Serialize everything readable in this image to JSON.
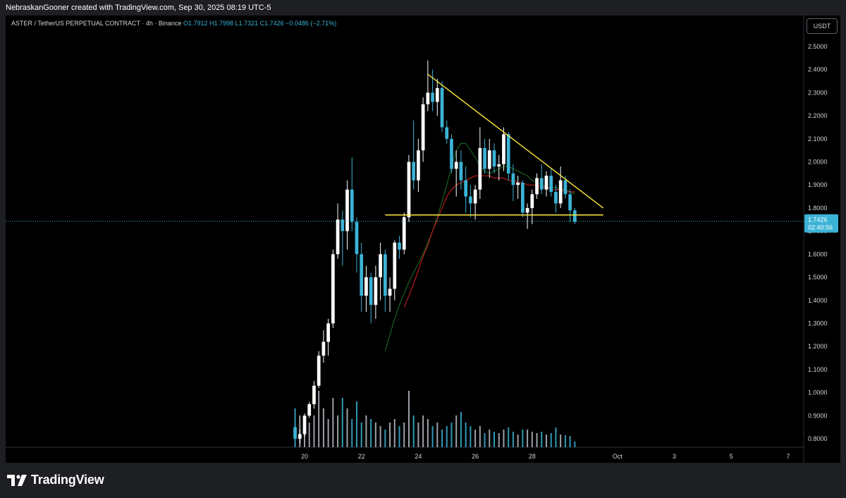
{
  "header": {
    "attribution": "NebraskanGooner created with TradingView.com, Sep 30, 2025 08:19 UTC-5"
  },
  "legend": {
    "symbol": "ASTER / TetherUS PERPETUAL CONTRACT · 4h · Binance",
    "open": "O1.7912",
    "high": "H1.7998",
    "low": "L1.7321",
    "close": "C1.7426",
    "change": "−0.0486 (−2.71%)"
  },
  "currency_button": "USDT",
  "price_label": {
    "price": "1.7426",
    "countdown": "02:40:56"
  },
  "brand": "TradingView",
  "colors": {
    "up": "#ffffff",
    "down": "#3bb3d6",
    "trendline": "#ffeb3b",
    "ma_green": "#1b5e20",
    "ma_red": "#b71c1c",
    "axis_text": "#d1d4dc",
    "current_price": "#3bb3d6"
  },
  "chart_data": {
    "type": "candlestick",
    "timeframe": "4h",
    "y_ticks": [
      "2.5000",
      "2.4000",
      "2.3000",
      "2.2000",
      "2.1000",
      "2.0000",
      "1.9000",
      "1.8000",
      "1.7000",
      "1.6000",
      "1.5000",
      "1.4000",
      "1.3000",
      "1.2000",
      "1.1000",
      "1.0000",
      "0.9000",
      "0.8000"
    ],
    "ylim": [
      0.78,
      2.56
    ],
    "x_ticks": [
      "20",
      "22",
      "24",
      "26",
      "28",
      "Oct",
      "3",
      "5",
      "7"
    ],
    "current_price": 1.7426,
    "candles": [
      [
        "Sep 19 16:00",
        0.85,
        0.86,
        0.8,
        0.8
      ],
      [
        "Sep 19 20:00",
        0.8,
        0.84,
        0.78,
        0.82
      ],
      [
        "Sep 20 00:00",
        0.82,
        0.91,
        0.81,
        0.9
      ],
      [
        "Sep 20 04:00",
        0.9,
        0.96,
        0.89,
        0.95
      ],
      [
        "Sep 20 08:00",
        0.95,
        1.05,
        0.93,
        1.03
      ],
      [
        "Sep 20 12:00",
        1.03,
        1.18,
        1.02,
        1.16
      ],
      [
        "Sep 20 16:00",
        1.16,
        1.27,
        1.13,
        1.22
      ],
      [
        "Sep 20 20:00",
        1.22,
        1.32,
        1.16,
        1.3
      ],
      [
        "Sep 21 00:00",
        1.3,
        1.62,
        1.28,
        1.6
      ],
      [
        "Sep 21 04:00",
        1.6,
        1.82,
        1.58,
        1.75
      ],
      [
        "Sep 21 08:00",
        1.75,
        1.79,
        1.55,
        1.7
      ],
      [
        "Sep 21 12:00",
        1.7,
        1.92,
        1.62,
        1.88
      ],
      [
        "Sep 21 16:00",
        1.88,
        2.02,
        1.7,
        1.74
      ],
      [
        "Sep 21 20:00",
        1.74,
        1.76,
        1.52,
        1.6
      ],
      [
        "Sep 22 00:00",
        1.6,
        1.65,
        1.35,
        1.42
      ],
      [
        "Sep 22 04:00",
        1.42,
        1.55,
        1.35,
        1.5
      ],
      [
        "Sep 22 08:00",
        1.5,
        1.52,
        1.3,
        1.38
      ],
      [
        "Sep 22 12:00",
        1.38,
        1.55,
        1.32,
        1.5
      ],
      [
        "Sep 22 16:00",
        1.5,
        1.65,
        1.4,
        1.6
      ],
      [
        "Sep 22 20:00",
        1.6,
        1.62,
        1.35,
        1.42
      ],
      [
        "Sep 23 00:00",
        1.42,
        1.5,
        1.35,
        1.45
      ],
      [
        "Sep 23 04:00",
        1.45,
        1.66,
        1.4,
        1.65
      ],
      [
        "Sep 23 08:00",
        1.65,
        1.68,
        1.58,
        1.62
      ],
      [
        "Sep 23 12:00",
        1.62,
        1.78,
        1.6,
        1.76
      ],
      [
        "Sep 23 16:00",
        1.76,
        2.03,
        1.74,
        2.0
      ],
      [
        "Sep 23 20:00",
        2.0,
        2.18,
        1.88,
        1.92
      ],
      [
        "Sep 24 00:00",
        1.92,
        2.1,
        1.87,
        2.05
      ],
      [
        "Sep 24 04:00",
        2.05,
        2.28,
        2.0,
        2.25
      ],
      [
        "Sep 24 08:00",
        2.25,
        2.44,
        2.22,
        2.3
      ],
      [
        "Sep 24 12:00",
        2.3,
        2.4,
        2.22,
        2.26
      ],
      [
        "Sep 24 16:00",
        2.26,
        2.36,
        2.2,
        2.32
      ],
      [
        "Sep 24 20:00",
        2.32,
        2.35,
        2.13,
        2.15
      ],
      [
        "Sep 25 00:00",
        2.15,
        2.18,
        2.08,
        2.1
      ],
      [
        "Sep 25 04:00",
        2.1,
        2.12,
        1.95,
        1.97
      ],
      [
        "Sep 25 08:00",
        1.97,
        2.05,
        1.85,
        2.0
      ],
      [
        "Sep 25 12:00",
        2.0,
        2.05,
        1.88,
        1.92
      ],
      [
        "Sep 25 16:00",
        1.92,
        1.98,
        1.78,
        1.85
      ],
      [
        "Sep 25 20:00",
        1.85,
        1.9,
        1.76,
        1.82
      ],
      [
        "Sep 26 00:00",
        1.82,
        1.9,
        1.75,
        1.88
      ],
      [
        "Sep 26 04:00",
        1.88,
        2.15,
        1.84,
        2.06
      ],
      [
        "Sep 26 08:00",
        2.06,
        2.1,
        1.95,
        1.97
      ],
      [
        "Sep 26 12:00",
        1.97,
        2.1,
        1.93,
        2.05
      ],
      [
        "Sep 26 16:00",
        2.05,
        2.08,
        1.95,
        1.98
      ],
      [
        "Sep 26 20:00",
        1.98,
        2.03,
        1.92,
        1.99
      ],
      [
        "Sep 27 00:00",
        1.99,
        2.15,
        1.96,
        2.12
      ],
      [
        "Sep 27 04:00",
        2.12,
        2.13,
        1.92,
        1.95
      ],
      [
        "Sep 27 08:00",
        1.95,
        1.99,
        1.83,
        1.9
      ],
      [
        "Sep 27 12:00",
        1.9,
        1.94,
        1.84,
        1.91
      ],
      [
        "Sep 27 16:00",
        1.91,
        1.92,
        1.76,
        1.78
      ],
      [
        "Sep 27 20:00",
        1.78,
        1.82,
        1.71,
        1.8
      ],
      [
        "Sep 28 00:00",
        1.8,
        1.88,
        1.73,
        1.86
      ],
      [
        "Sep 28 04:00",
        1.86,
        1.95,
        1.84,
        1.93
      ],
      [
        "Sep 28 08:00",
        1.93,
        1.99,
        1.86,
        1.88
      ],
      [
        "Sep 28 12:00",
        1.88,
        1.96,
        1.85,
        1.94
      ],
      [
        "Sep 28 16:00",
        1.94,
        1.97,
        1.85,
        1.87
      ],
      [
        "Sep 28 20:00",
        1.87,
        1.9,
        1.78,
        1.82
      ],
      [
        "Sep 29 00:00",
        1.82,
        1.98,
        1.8,
        1.92
      ],
      [
        "Sep 29 04:00",
        1.92,
        1.94,
        1.84,
        1.86
      ],
      [
        "Sep 29 08:00",
        1.86,
        1.88,
        1.74,
        1.79
      ],
      [
        "Sep 29 12:00",
        1.79,
        1.8,
        1.73,
        1.74
      ]
    ],
    "volume_relative": [
      0.55,
      0.45,
      0.3,
      0.35,
      0.45,
      0.8,
      0.55,
      0.4,
      0.7,
      0.45,
      0.7,
      0.55,
      0.4,
      0.65,
      0.35,
      0.45,
      0.4,
      0.35,
      0.3,
      0.25,
      0.35,
      0.4,
      0.3,
      0.35,
      0.8,
      0.45,
      0.35,
      0.45,
      0.4,
      0.3,
      0.35,
      0.25,
      0.3,
      0.35,
      0.45,
      0.5,
      0.35,
      0.3,
      0.25,
      0.3,
      0.2,
      0.25,
      0.22,
      0.2,
      0.25,
      0.28,
      0.22,
      0.18,
      0.25,
      0.25,
      0.22,
      0.2,
      0.22,
      0.18,
      0.2,
      0.28,
      0.18,
      0.17,
      0.16,
      0.08
    ],
    "moving_averages": [
      {
        "color": "#1b5e20",
        "values": [
          1.18,
          1.25,
          1.32,
          1.38,
          1.43,
          1.48,
          1.52,
          1.56,
          1.6,
          1.65,
          1.7,
          1.76,
          1.83,
          1.9,
          1.98,
          2.05,
          2.08,
          2.08,
          2.05,
          2.02,
          1.98,
          1.96,
          1.95,
          1.96,
          1.97,
          1.98,
          1.98,
          1.97,
          1.96,
          1.95,
          1.94,
          1.92,
          1.91,
          1.9,
          1.89,
          1.89,
          1.89,
          1.88,
          1.88,
          1.87,
          1.86
        ]
      },
      {
        "color": "#b71c1c",
        "values": [
          1.37,
          1.42,
          1.47,
          1.53,
          1.59,
          1.64,
          1.7,
          1.75,
          1.8,
          1.85,
          1.88,
          1.9,
          1.91,
          1.92,
          1.93,
          1.94,
          1.94,
          1.94,
          1.94,
          1.93,
          1.93,
          1.93,
          1.92,
          1.92,
          1.91,
          1.91,
          1.9,
          1.9,
          1.9,
          1.89,
          1.89,
          1.88,
          1.88,
          1.88,
          1.87,
          1.87,
          1.87
        ]
      }
    ],
    "trendlines": [
      {
        "from": [
          "Sep 24 08:00",
          2.38
        ],
        "to": [
          "Sep 30 12:00",
          1.8
        ]
      },
      {
        "from": [
          "Sep 22 20:00",
          1.77
        ],
        "to": [
          "Sep 30 12:00",
          1.77
        ]
      }
    ]
  }
}
